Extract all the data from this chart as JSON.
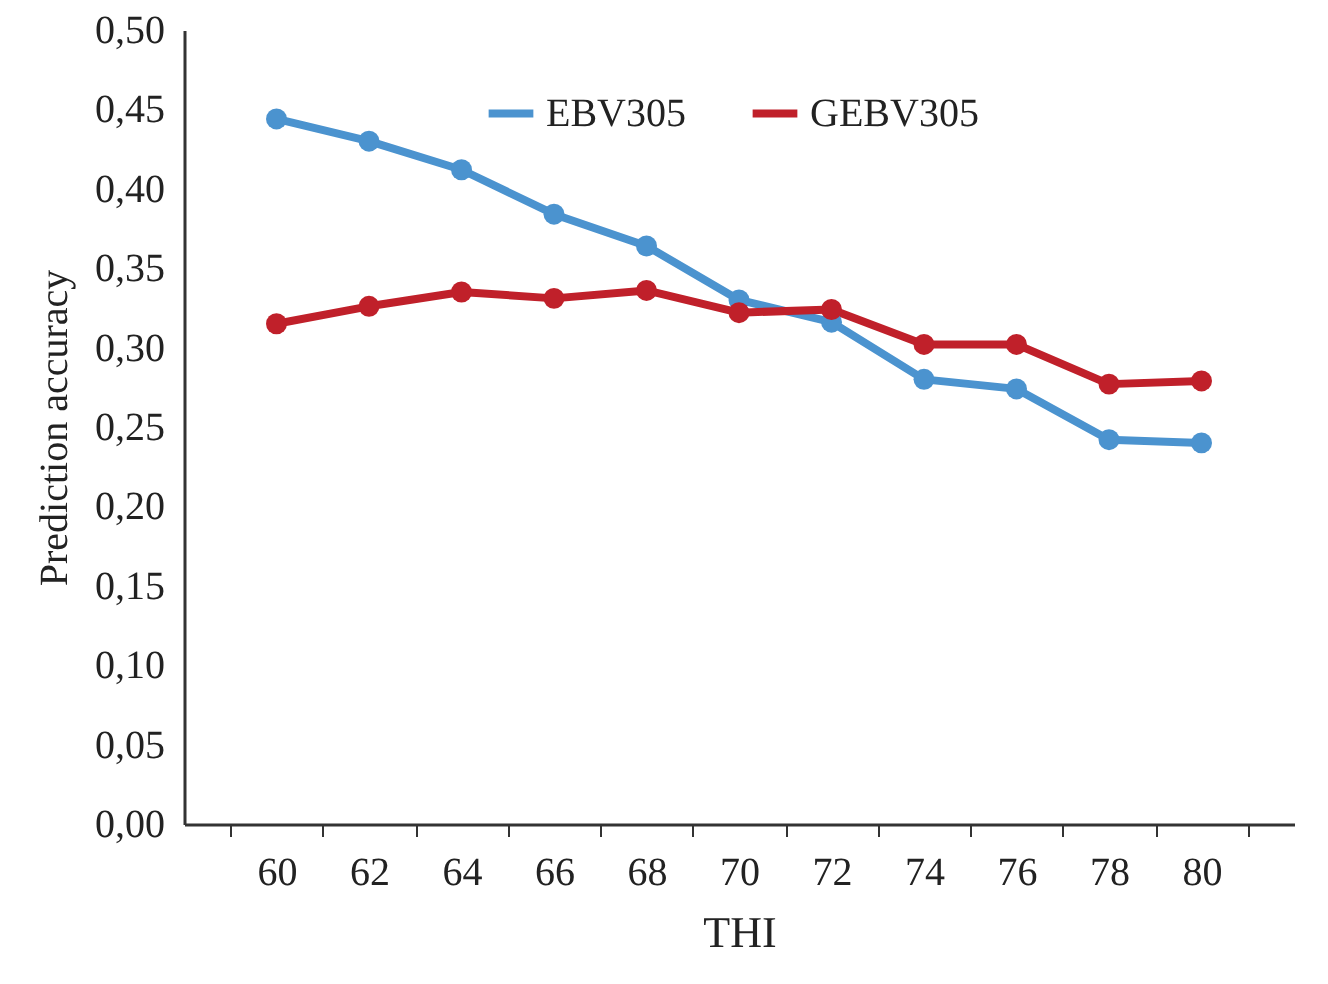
{
  "chart_data": {
    "type": "line",
    "xlabel": "THI",
    "ylabel": "Prediction accuracy",
    "categories": [
      "60",
      "62",
      "64",
      "66",
      "68",
      "70",
      "72",
      "74",
      "76",
      "78",
      "80"
    ],
    "series": [
      {
        "name": "EBV305",
        "color": "#4b93cf",
        "values": [
          0.444,
          0.43,
          0.412,
          0.384,
          0.364,
          0.33,
          0.316,
          0.28,
          0.274,
          0.242,
          0.24
        ]
      },
      {
        "name": "GEBV305",
        "color": "#c0202a",
        "values": [
          0.315,
          0.326,
          0.335,
          0.331,
          0.336,
          0.322,
          0.324,
          0.302,
          0.302,
          0.277,
          0.279
        ]
      }
    ],
    "ylim": [
      0,
      0.5
    ],
    "yticks": [
      {
        "value": 0,
        "label": "0,00"
      },
      {
        "value": 0.05,
        "label": "0,05"
      },
      {
        "value": 0.1,
        "label": "0,10"
      },
      {
        "value": 0.15,
        "label": "0,15"
      },
      {
        "value": 0.2,
        "label": "0,20"
      },
      {
        "value": 0.25,
        "label": "0,25"
      },
      {
        "value": 0.3,
        "label": "0,30"
      },
      {
        "value": 0.35,
        "label": "0,35"
      },
      {
        "value": 0.4,
        "label": "0,40"
      },
      {
        "value": 0.45,
        "label": "0,45"
      },
      {
        "value": 0.5,
        "label": "0,50"
      }
    ],
    "grid": false,
    "legend": "top",
    "marker": "circle",
    "line_style": "solid"
  }
}
